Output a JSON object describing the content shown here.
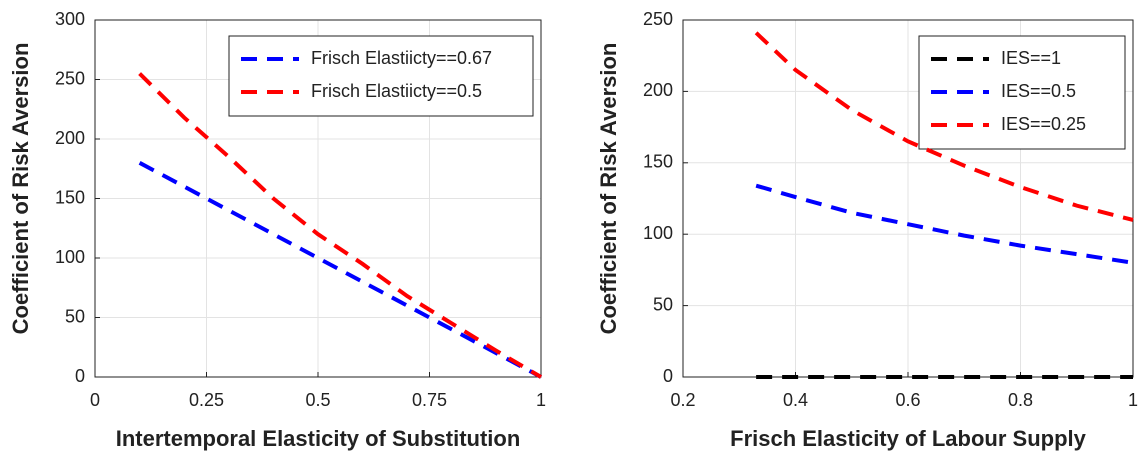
{
  "chart_data": [
    {
      "type": "line",
      "xlabel": "Intertemporal Elasticity of Substitution",
      "ylabel": "Coefficient of Risk Aversion",
      "x": [
        0.1,
        0.2,
        0.3,
        0.4,
        0.5,
        0.6,
        0.7,
        0.8,
        0.9,
        1
      ],
      "series": [
        {
          "name": "Frisch Elastiicty==0.67",
          "color": "#0000ff",
          "values": [
            180,
            160,
            140,
            120,
            100,
            80,
            60,
            40,
            20,
            0
          ]
        },
        {
          "name": "Frisch Elastiicty==0.5",
          "color": "#ff0000",
          "values": [
            255,
            218,
            185,
            150,
            120,
            95,
            68,
            45,
            22,
            0
          ]
        }
      ],
      "xlim": [
        0,
        1
      ],
      "xticks": [
        0,
        0.25,
        0.5,
        0.75,
        1
      ],
      "ylim": [
        0,
        300
      ],
      "yticks": [
        0,
        50,
        100,
        150,
        200,
        250,
        300
      ],
      "grid": true,
      "legend": "upper right",
      "line_style": "dashed"
    },
    {
      "type": "line",
      "xlabel": "Frisch Elasticity of Labour Supply",
      "ylabel": "Coefficient of Risk Aversion",
      "x": [
        0.33,
        0.4,
        0.5,
        0.6,
        0.7,
        0.8,
        0.9,
        1
      ],
      "series": [
        {
          "name": "IES==1",
          "color": "#000000",
          "values": [
            0,
            0,
            0,
            0,
            0,
            0,
            0,
            0
          ]
        },
        {
          "name": "IES==0.5",
          "color": "#0000ff",
          "values": [
            134,
            126,
            115,
            107,
            99,
            92,
            86,
            80
          ]
        },
        {
          "name": "IES==0.25",
          "color": "#ff0000",
          "values": [
            241,
            215,
            187,
            165,
            148,
            133,
            120,
            110
          ]
        }
      ],
      "xlim": [
        0.2,
        1
      ],
      "xticks": [
        0.2,
        0.4,
        0.6,
        0.8,
        1
      ],
      "ylim": [
        0,
        250
      ],
      "yticks": [
        0,
        50,
        100,
        150,
        200,
        250
      ],
      "grid": true,
      "legend": "upper right",
      "line_style": "dashed"
    }
  ]
}
